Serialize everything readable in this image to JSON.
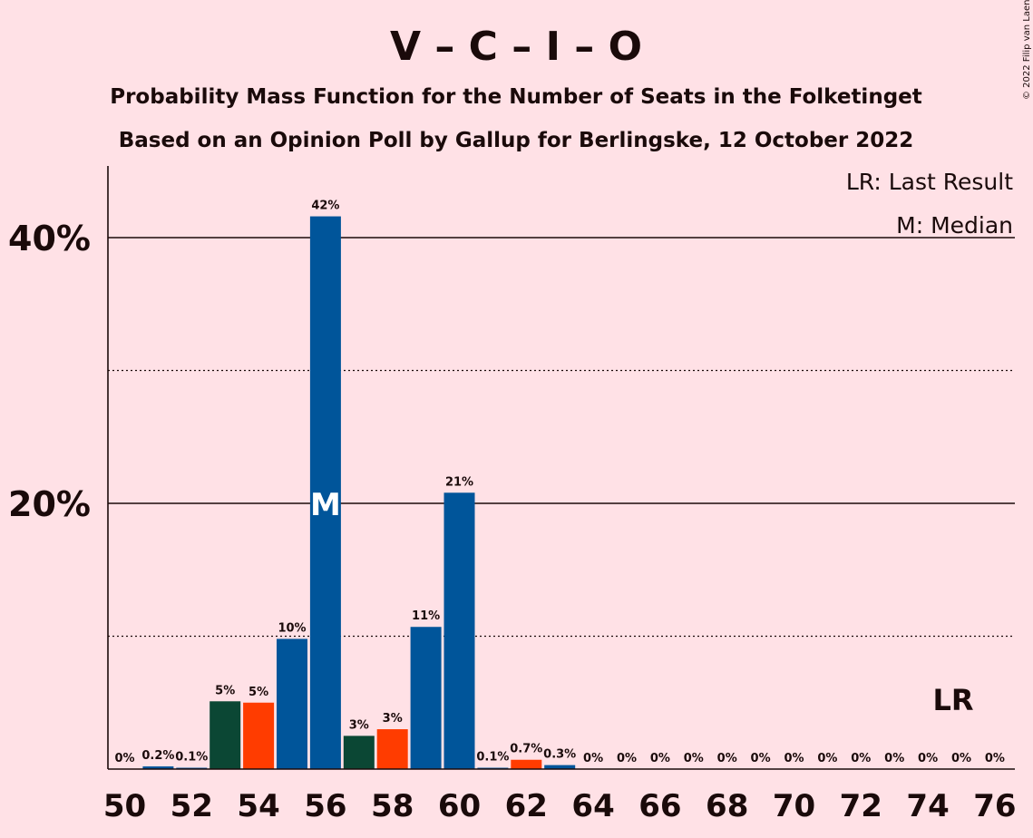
{
  "chart_data": {
    "type": "bar",
    "title": "V – C – I – O",
    "subtitle_1": "Probability Mass Function for the Number of Seats in the Folketinget",
    "subtitle_2": "Based on an Opinion Poll by Gallup for Berlingske, 12 October 2022",
    "copyright": "© 2022 Filip van Laenen",
    "legend": {
      "last_result": "LR: Last Result",
      "median": "M: Median",
      "placement": "top-right"
    },
    "ylim": [
      0,
      45
    ],
    "y_ticks": [
      {
        "value": 40,
        "label": "40%"
      },
      {
        "value": 20,
        "label": "20%"
      }
    ],
    "y_minor_gridlines": [
      10,
      30
    ],
    "x_tick_labels": [
      "50",
      "52",
      "54",
      "56",
      "58",
      "60",
      "62",
      "64",
      "66",
      "68",
      "70",
      "72",
      "74",
      "76"
    ],
    "x_tick_values": [
      50,
      52,
      54,
      56,
      58,
      60,
      62,
      64,
      66,
      68,
      70,
      72,
      74,
      76
    ],
    "median_seat": 56,
    "median_marker": "M",
    "last_result_seat": 75,
    "last_result_marker": "LR",
    "colors": {
      "background": "#ffe1e6",
      "blue": "#00559a",
      "dark_green": "#0b4734",
      "orange_red": "#ff3c00",
      "text": "#1a0a0a"
    },
    "bars": [
      {
        "seat": 50,
        "value": 0.0,
        "label": "0%",
        "color": "blue"
      },
      {
        "seat": 51,
        "value": 0.2,
        "label": "0.2%",
        "color": "blue"
      },
      {
        "seat": 52,
        "value": 0.1,
        "label": "0.1%",
        "color": "blue"
      },
      {
        "seat": 53,
        "value": 5.1,
        "label": "5%",
        "color": "dark_green"
      },
      {
        "seat": 54,
        "value": 5.0,
        "label": "5%",
        "color": "orange_red"
      },
      {
        "seat": 55,
        "value": 9.8,
        "label": "10%",
        "color": "blue"
      },
      {
        "seat": 56,
        "value": 41.6,
        "label": "42%",
        "color": "blue"
      },
      {
        "seat": 57,
        "value": 2.5,
        "label": "3%",
        "color": "dark_green"
      },
      {
        "seat": 58,
        "value": 3.0,
        "label": "3%",
        "color": "orange_red"
      },
      {
        "seat": 59,
        "value": 10.7,
        "label": "11%",
        "color": "blue"
      },
      {
        "seat": 60,
        "value": 20.8,
        "label": "21%",
        "color": "blue"
      },
      {
        "seat": 61,
        "value": 0.1,
        "label": "0.1%",
        "color": "blue"
      },
      {
        "seat": 62,
        "value": 0.7,
        "label": "0.7%",
        "color": "orange_red"
      },
      {
        "seat": 63,
        "value": 0.3,
        "label": "0.3%",
        "color": "blue"
      },
      {
        "seat": 64,
        "value": 0.0,
        "label": "0%",
        "color": "blue"
      },
      {
        "seat": 65,
        "value": 0.0,
        "label": "0%",
        "color": "blue"
      },
      {
        "seat": 66,
        "value": 0.0,
        "label": "0%",
        "color": "blue"
      },
      {
        "seat": 67,
        "value": 0.0,
        "label": "0%",
        "color": "blue"
      },
      {
        "seat": 68,
        "value": 0.0,
        "label": "0%",
        "color": "blue"
      },
      {
        "seat": 69,
        "value": 0.0,
        "label": "0%",
        "color": "blue"
      },
      {
        "seat": 70,
        "value": 0.0,
        "label": "0%",
        "color": "blue"
      },
      {
        "seat": 71,
        "value": 0.0,
        "label": "0%",
        "color": "blue"
      },
      {
        "seat": 72,
        "value": 0.0,
        "label": "0%",
        "color": "blue"
      },
      {
        "seat": 73,
        "value": 0.0,
        "label": "0%",
        "color": "blue"
      },
      {
        "seat": 74,
        "value": 0.0,
        "label": "0%",
        "color": "blue"
      },
      {
        "seat": 75,
        "value": 0.0,
        "label": "0%",
        "color": "blue"
      },
      {
        "seat": 76,
        "value": 0.0,
        "label": "0%",
        "color": "blue"
      }
    ]
  }
}
